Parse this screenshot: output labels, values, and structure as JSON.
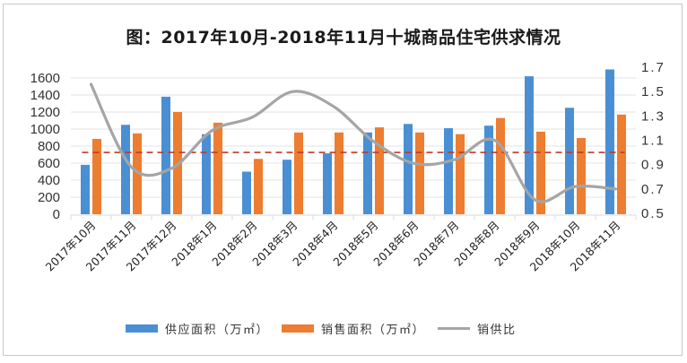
{
  "chart_data": {
    "type": "bar",
    "title": "图：2017年10月-2018年11月十城商品住宅供求情况",
    "categories": [
      "2017年10月",
      "2017年11月",
      "2017年12月",
      "2018年1月",
      "2018年2月",
      "2018年3月",
      "2018年4月",
      "2018年5月",
      "2018年6月",
      "2018年7月",
      "2018年8月",
      "2018年9月",
      "2018年10月",
      "2018年11月"
    ],
    "series": [
      {
        "name": "供应面积（万㎡）",
        "type": "bar",
        "axis": "left",
        "color": "#4a8fd4",
        "values": [
          580,
          1050,
          1380,
          940,
          500,
          640,
          715,
          960,
          1060,
          1010,
          1040,
          1620,
          1250,
          1700
        ]
      },
      {
        "name": "销售面积（万㎡）",
        "type": "bar",
        "axis": "left",
        "color": "#ed7d31",
        "values": [
          885,
          950,
          1200,
          1075,
          650,
          960,
          960,
          1020,
          960,
          940,
          1130,
          970,
          895,
          1170
        ]
      },
      {
        "name": "销供比",
        "type": "line",
        "axis": "right",
        "color": "#a5a5a5",
        "values": [
          1.56,
          0.88,
          0.87,
          1.18,
          1.29,
          1.5,
          1.38,
          1.09,
          0.91,
          0.94,
          1.1,
          0.61,
          0.72,
          0.7
        ]
      }
    ],
    "reference_line": {
      "value": 1.0,
      "axis": "right",
      "style": "dashed",
      "color": "#c0392b"
    },
    "xlabel": "",
    "ylabel": "",
    "ylim": [
      0,
      1600
    ],
    "y_ticks": [
      0,
      200,
      400,
      600,
      800,
      1000,
      1200,
      1400,
      1600
    ],
    "y2lim": [
      0.5,
      1.7
    ],
    "y2_ticks": [
      "0.5",
      "0.7",
      "0.9",
      "1.1",
      "1.3",
      "1.5",
      "1.7"
    ],
    "grid": true,
    "legend_position": "bottom"
  },
  "legend": {
    "supply": "供应面积（万㎡）",
    "sales": "销售面积（万㎡）",
    "ratio": "销供比"
  }
}
